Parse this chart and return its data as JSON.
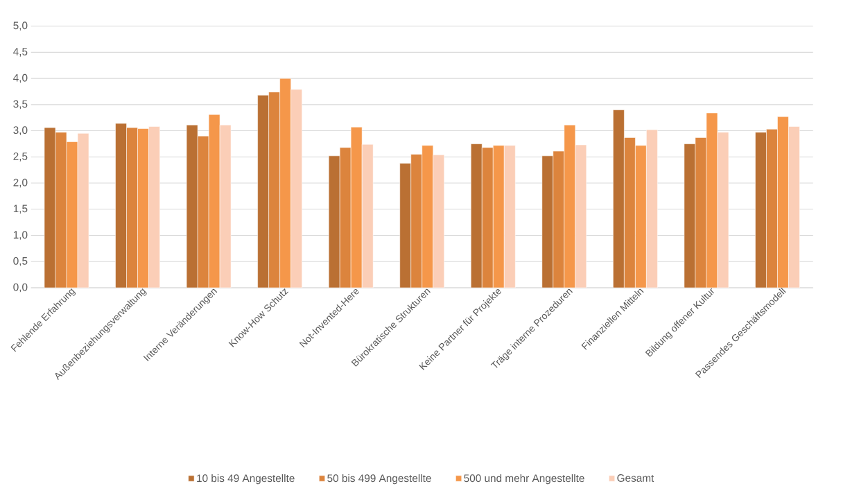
{
  "chart_data": {
    "type": "bar",
    "categories": [
      "Fehlende Erfahrung",
      "Außenbeziehungsverwaltung",
      "Interne Veränderungen",
      "Know-How Schutz",
      "Not-Invented-Here",
      "Bürokratische Strukturen",
      "Keine Partner für Projekte",
      "Träge interne Prozeduren",
      "Finanziellen Mitteln",
      "Bildung offener Kultur",
      "Passendes Geschäftsmodell"
    ],
    "series": [
      {
        "name": "10 bis 49 Angestellte",
        "color": "#ba7033",
        "values": [
          3.06,
          3.14,
          3.11,
          3.68,
          2.52,
          2.38,
          2.75,
          2.52,
          3.4,
          2.75,
          2.97
        ]
      },
      {
        "name": "50 bis 499 Angestellte",
        "color": "#dc843d",
        "values": [
          2.97,
          3.06,
          2.9,
          3.74,
          2.68,
          2.55,
          2.68,
          2.61,
          2.87,
          2.87,
          3.03
        ]
      },
      {
        "name": "500 und mehr Angestellte",
        "color": "#f5974a",
        "values": [
          2.79,
          3.04,
          3.31,
          4.0,
          3.07,
          2.72,
          2.72,
          3.11,
          2.72,
          3.34,
          3.27
        ]
      },
      {
        "name": "Gesamt",
        "color": "#fbceb7",
        "values": [
          2.95,
          3.08,
          3.11,
          3.79,
          2.74,
          2.54,
          2.72,
          2.73,
          3.02,
          2.97,
          3.08
        ]
      }
    ],
    "ylim": [
      0,
      5
    ],
    "yticks": [
      {
        "value": 0,
        "label": "0,0"
      },
      {
        "value": 0.5,
        "label": "0,5"
      },
      {
        "value": 1,
        "label": "1,0"
      },
      {
        "value": 1.5,
        "label": "1,5"
      },
      {
        "value": 2,
        "label": "2,0"
      },
      {
        "value": 2.5,
        "label": "2,5"
      },
      {
        "value": 3,
        "label": "3,0"
      },
      {
        "value": 3.5,
        "label": "3,5"
      },
      {
        "value": 4,
        "label": "4,0"
      },
      {
        "value": 4.5,
        "label": "4,5"
      },
      {
        "value": 5,
        "label": "5,0"
      }
    ],
    "grid": "y",
    "legend": "bottom"
  }
}
